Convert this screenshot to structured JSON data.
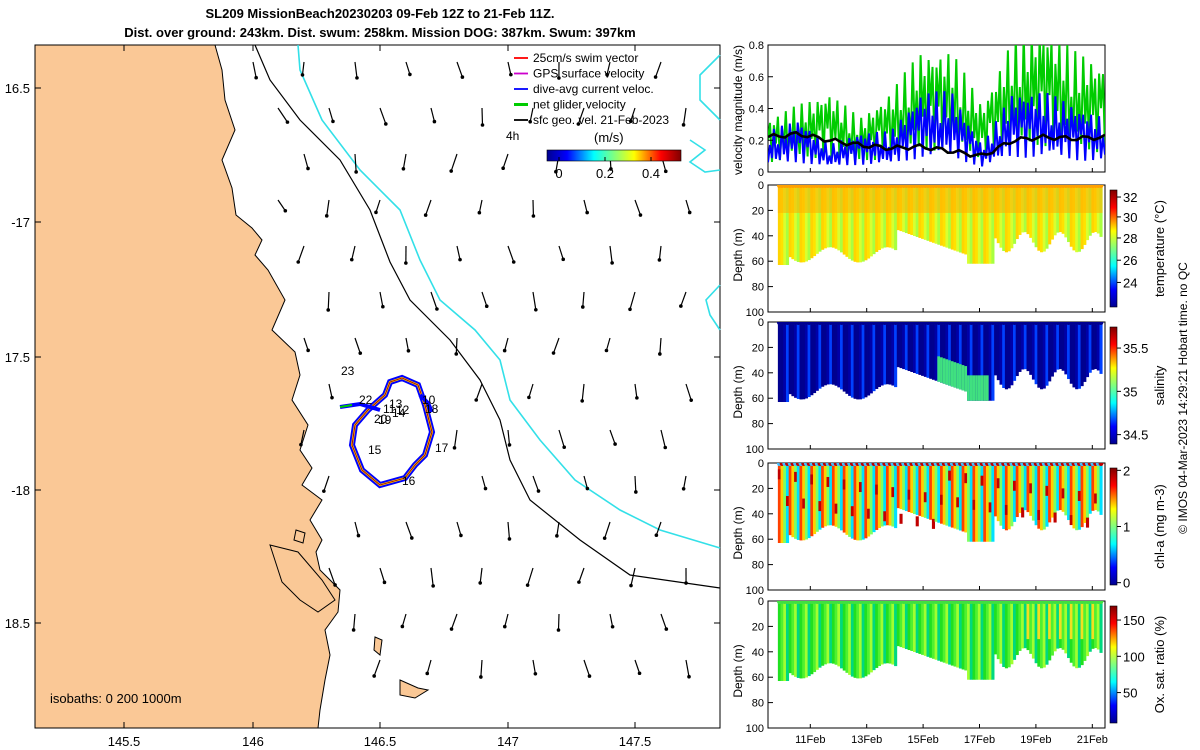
{
  "title": {
    "line1": "SL209 MissionBeach20230203 09-Feb 12Z to 21-Feb 11Z.",
    "line2": "Dist. over ground: 243km. Dist. swum: 258km. Mission DOG: 387km. Swum: 397km"
  },
  "map": {
    "lat_ticks": [
      "16.5",
      "-17",
      "17.5",
      "-18",
      "18.5"
    ],
    "lon_ticks": [
      "145.5",
      "146",
      "146.5",
      "147",
      "147.5"
    ],
    "legend": [
      "25cm/s swim vector",
      "GPS surface velocity",
      "dive-avg current veloc.",
      "net glider velocity",
      "sfc geo. vel. 21-Feb-2023"
    ],
    "legend_colors": [
      "#ff0000",
      "#cc00cc",
      "#0000ff",
      "#00cc00",
      "#000000"
    ],
    "timestep_label": "4h",
    "colorbar_label": "(m/s)",
    "colorbar_ticks": [
      "0",
      "0.2",
      "0.4"
    ],
    "isobath_label": "isobaths: 0   200  1000m",
    "day_labels": [
      "23",
      "22",
      "11",
      "13",
      "12",
      "10",
      "20",
      "14",
      "18",
      "19",
      "15",
      "17",
      "16"
    ],
    "land_color": "#fac896",
    "isobath_color": "#33e0e8"
  },
  "velocity_panel": {
    "ylabel": "velocity magnitude (m/s)",
    "yticks": [
      "0",
      "0.2",
      "0.4",
      "0.6",
      "0.8"
    ]
  },
  "depth_axis": {
    "ylabel": "Depth (m)",
    "yticks": [
      "0",
      "20",
      "40",
      "60",
      "80",
      "100"
    ]
  },
  "panels": [
    {
      "label": "temperature (°C)",
      "ticks": [
        "32",
        "30",
        "28",
        "26",
        "24"
      ]
    },
    {
      "label": "salinity",
      "ticks": [
        "35.5",
        "35",
        "34.5"
      ]
    },
    {
      "label": "chl-a (mg m-3)",
      "ticks": [
        "2",
        "1",
        "0"
      ]
    },
    {
      "label": "Ox. sat. ratio (%)",
      "ticks": [
        "150",
        "100",
        "50"
      ]
    }
  ],
  "time_ticks": [
    "11Feb",
    "13Feb",
    "15Feb",
    "17Feb",
    "19Feb",
    "21Feb"
  ],
  "credit": "© IMOS 04-Mar-2023 14:29:21 Hobart time. no QC",
  "chart_data": {
    "type": "line",
    "title": "velocity magnitude (m/s)",
    "x": [
      "10Feb",
      "11Feb",
      "12Feb",
      "13Feb",
      "14Feb",
      "15Feb",
      "16Feb",
      "17Feb",
      "18Feb",
      "19Feb",
      "20Feb",
      "21Feb"
    ],
    "ylim": [
      0,
      0.8
    ],
    "series": [
      {
        "name": "net glider velocity",
        "color": "#00cc00",
        "values": [
          0.2,
          0.25,
          0.3,
          0.2,
          0.3,
          0.45,
          0.45,
          0.25,
          0.5,
          0.55,
          0.45,
          0.4
        ]
      },
      {
        "name": "dive-avg current veloc.",
        "color": "#0000ff",
        "values": [
          0.15,
          0.2,
          0.1,
          0.15,
          0.15,
          0.3,
          0.3,
          0.1,
          0.3,
          0.3,
          0.25,
          0.2
        ]
      },
      {
        "name": "sfc geo. vel.",
        "color": "#000000",
        "values": [
          0.22,
          0.24,
          0.2,
          0.17,
          0.15,
          0.16,
          0.13,
          0.1,
          0.2,
          0.22,
          0.21,
          0.22
        ]
      }
    ]
  }
}
